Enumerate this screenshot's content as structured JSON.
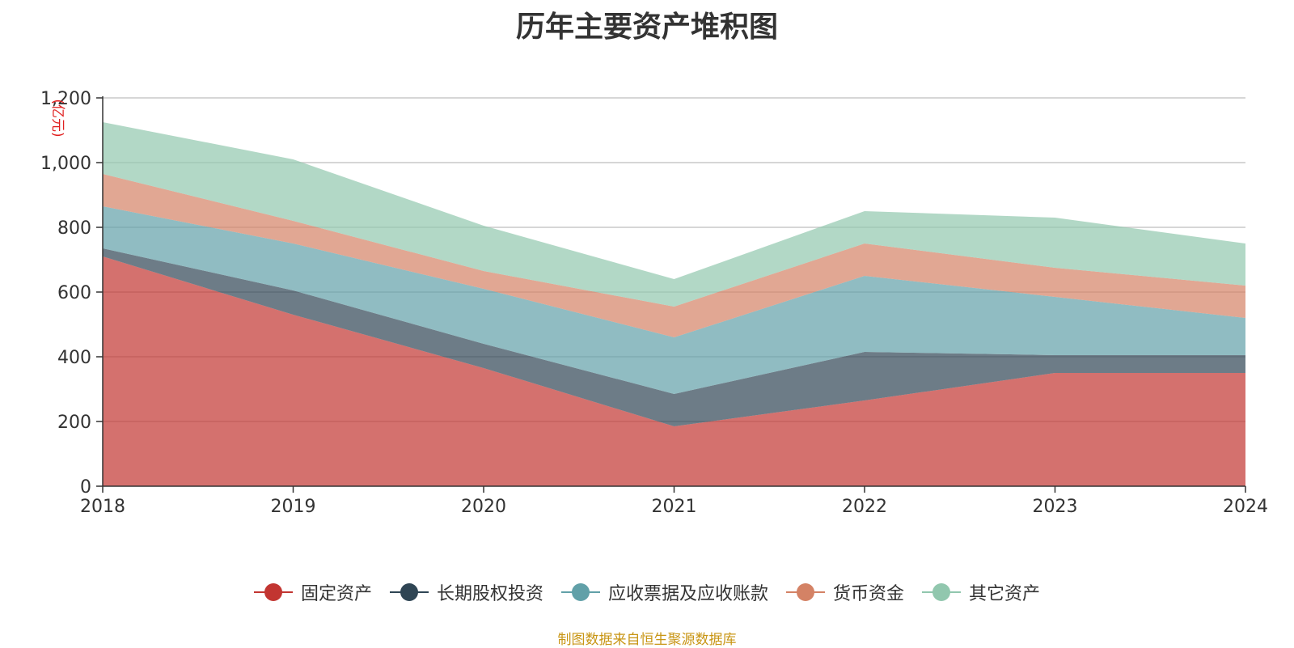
{
  "chart_data": {
    "type": "area",
    "stacked": true,
    "title": "历年主要资产堆积图",
    "ylabel": "(亿元)",
    "x": [
      "2018",
      "2019",
      "2020",
      "2021",
      "2022",
      "2023",
      "2024"
    ],
    "ylim": [
      0,
      1200
    ],
    "yticks": [
      "0",
      "200",
      "400",
      "600",
      "800",
      "1,000",
      "1,200"
    ],
    "grid": true,
    "legend_position": "bottom",
    "series": [
      {
        "name": "固定资产",
        "values": [
          710,
          530,
          365,
          185,
          265,
          350,
          350
        ],
        "color": "#c23531"
      },
      {
        "name": "长期股权投资",
        "values": [
          25,
          75,
          75,
          100,
          150,
          55,
          55
        ],
        "color": "#2f4554"
      },
      {
        "name": "应收票据及应收账款",
        "values": [
          130,
          145,
          170,
          175,
          235,
          180,
          115
        ],
        "color": "#61a0a8"
      },
      {
        "name": "货币资金",
        "values": [
          100,
          70,
          55,
          95,
          100,
          90,
          100
        ],
        "color": "#d48265"
      },
      {
        "name": "其它资产",
        "values": [
          160,
          190,
          140,
          85,
          100,
          155,
          130
        ],
        "color": "#91c7ae"
      }
    ]
  },
  "source_note": "制图数据来自恒生聚源数据库"
}
